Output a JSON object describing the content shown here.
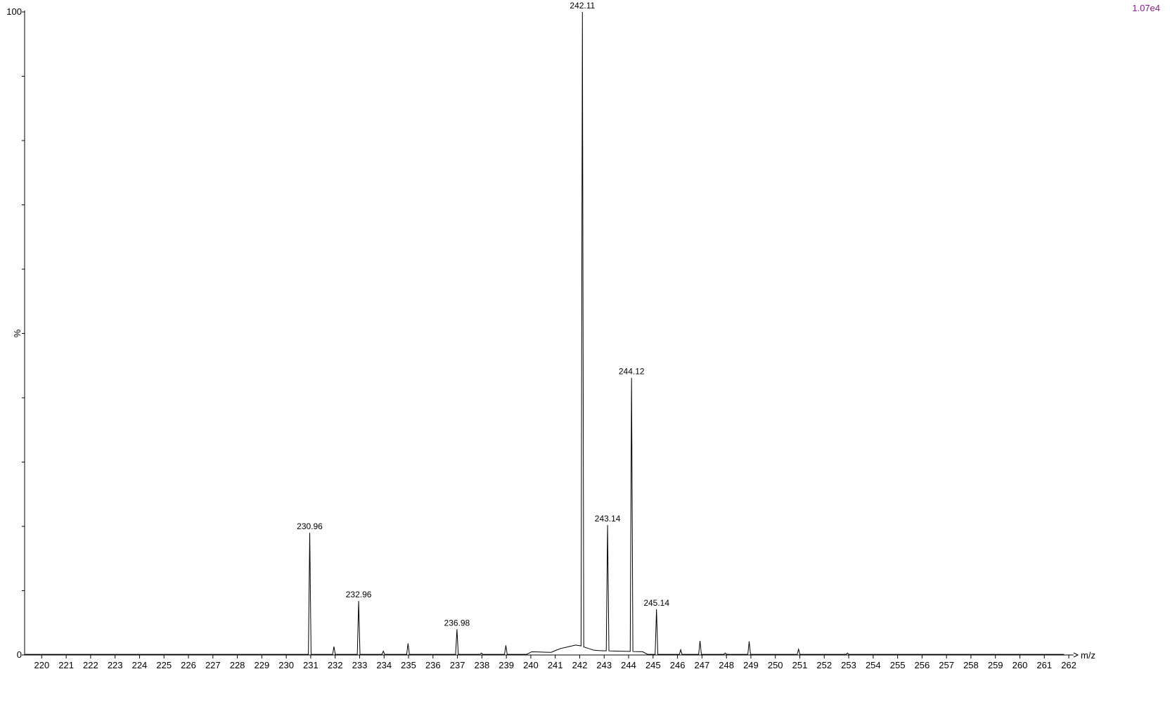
{
  "header": {
    "sample_text": "",
    "scale_max_label": "1.07e4"
  },
  "colors": {
    "header_text": "#8b1a8b",
    "trace": "#000000",
    "axis": "#000000"
  },
  "chart_data": {
    "type": "line",
    "title": "",
    "xlabel": "m/z",
    "ylabel": "%",
    "xlim": [
      219.3,
      262.2
    ],
    "ylim": [
      0,
      100
    ],
    "x_ticks": [
      220,
      221,
      222,
      223,
      224,
      225,
      226,
      227,
      228,
      229,
      230,
      231,
      232,
      233,
      234,
      235,
      236,
      237,
      238,
      239,
      240,
      241,
      242,
      243,
      244,
      245,
      246,
      247,
      248,
      249,
      250,
      251,
      252,
      253,
      254,
      255,
      256,
      257,
      258,
      259,
      260,
      261,
      262
    ],
    "y_tick_labels": [
      "0",
      "100"
    ],
    "y_minor_ticks": [
      0,
      10,
      20,
      30,
      40,
      50,
      60,
      70,
      80,
      90,
      100
    ],
    "peaks": [
      {
        "x": 230.96,
        "y": 19.0,
        "label": "230.96"
      },
      {
        "x": 231.95,
        "y": 1.3
      },
      {
        "x": 232.96,
        "y": 8.4,
        "label": "232.96"
      },
      {
        "x": 233.97,
        "y": 0.6
      },
      {
        "x": 234.98,
        "y": 1.8
      },
      {
        "x": 236.98,
        "y": 4.0,
        "label": "236.98"
      },
      {
        "x": 237.98,
        "y": 0.3
      },
      {
        "x": 238.98,
        "y": 1.5
      },
      {
        "x": 242.11,
        "y": 100.0,
        "label": "242.11"
      },
      {
        "x": 243.14,
        "y": 20.2,
        "label": "243.14"
      },
      {
        "x": 244.12,
        "y": 43.1,
        "label": "244.12"
      },
      {
        "x": 245.14,
        "y": 7.1,
        "label": "245.14"
      },
      {
        "x": 246.13,
        "y": 0.8
      },
      {
        "x": 246.92,
        "y": 2.2
      },
      {
        "x": 247.95,
        "y": 0.3
      },
      {
        "x": 248.93,
        "y": 2.1
      },
      {
        "x": 250.95,
        "y": 0.9
      },
      {
        "x": 252.95,
        "y": 0.3
      }
    ],
    "background": [
      {
        "x": 240.0,
        "y": 0.5
      },
      {
        "x": 240.9,
        "y": 0.4
      },
      {
        "x": 241.1,
        "y": 0.9
      },
      {
        "x": 241.9,
        "y": 1.6
      },
      {
        "x": 242.6,
        "y": 0.7
      },
      {
        "x": 243.5,
        "y": 0.6
      },
      {
        "x": 244.6,
        "y": 0.5
      }
    ]
  }
}
